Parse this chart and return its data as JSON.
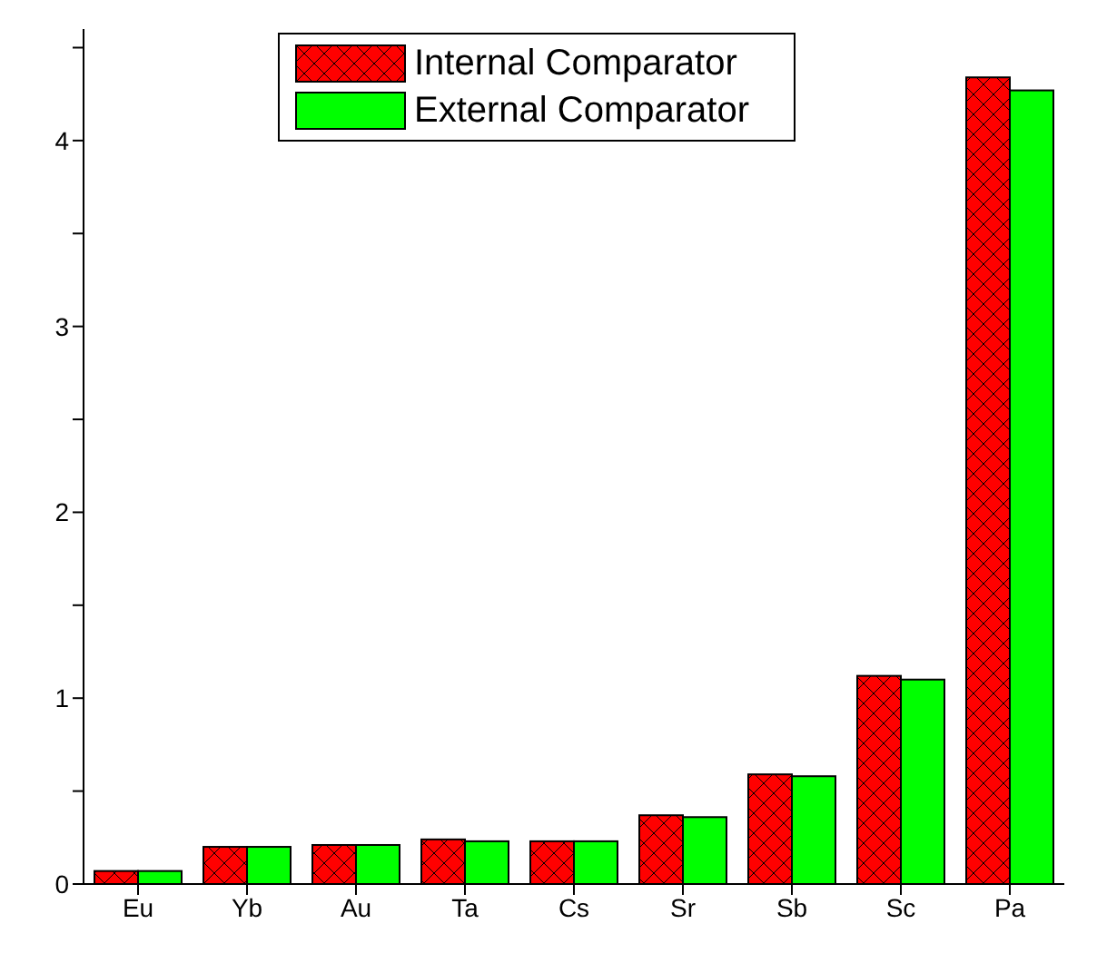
{
  "chart_data": {
    "type": "bar",
    "categories": [
      "Eu",
      "Yb",
      "Au",
      "Ta",
      "Cs",
      "Sr",
      "Sb",
      "Sc",
      "Pa"
    ],
    "series": [
      {
        "name": "Internal Comparator",
        "color": "#ff0000",
        "values": [
          0.07,
          0.2,
          0.21,
          0.24,
          0.23,
          0.37,
          0.59,
          1.12,
          4.34
        ]
      },
      {
        "name": "External Comparator",
        "color": "#00ff00",
        "values": [
          0.07,
          0.2,
          0.21,
          0.23,
          0.23,
          0.36,
          0.58,
          1.1,
          4.27
        ]
      }
    ],
    "ylim": [
      0,
      4.6
    ],
    "yticks": [
      0,
      {
        "value": 0.5,
        "label": null
      },
      1,
      {
        "value": 1.5,
        "label": null
      },
      2,
      {
        "value": 2.5,
        "label": null
      },
      3,
      {
        "value": 3.5,
        "label": null
      },
      4,
      {
        "value": 4.5,
        "label": null
      }
    ],
    "grid": false,
    "legend": "top"
  }
}
